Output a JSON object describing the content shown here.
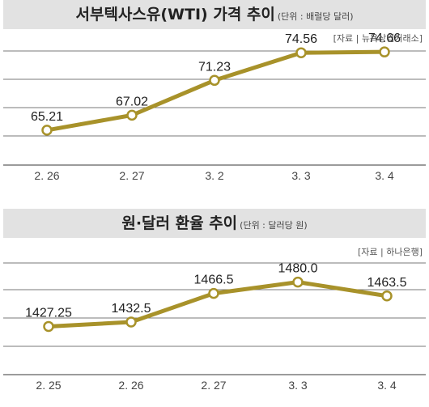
{
  "line_color": "#a8922a",
  "grid_color": "#7a7a7a",
  "title_bg": "#e2e2e2",
  "panels": [
    {
      "title": "서부텍사스유(WTI) 가격 추이",
      "unit": "(단위 : 배럴당 달러)",
      "source": "[자료 | 뉴욕상업거래소]"
    },
    {
      "title": "원·달러 환율 추이",
      "unit": "(단위 : 달러당 원)",
      "source": "[자료 | 하나은행]"
    }
  ],
  "chart_data": [
    {
      "type": "line",
      "title": "서부텍사스유(WTI) 가격 추이",
      "subtitle": "(단위 : 배럴당 달러)",
      "categories": [
        "2. 26",
        "2. 27",
        "3. 2",
        "3. 3",
        "3. 4"
      ],
      "values": [
        65.21,
        67.02,
        71.23,
        74.56,
        74.66
      ],
      "value_labels": [
        "65.21",
        "67.02",
        "71.23",
        "74.56",
        "74.66"
      ],
      "ylim": [
        61,
        78
      ],
      "grid": true,
      "source": "[자료 | 뉴욕상업거래소]"
    },
    {
      "type": "line",
      "title": "원·달러 환율 추이",
      "subtitle": "(단위 : 달러당 원)",
      "categories": [
        "2. 25",
        "2. 26",
        "2. 27",
        "3. 3",
        "3. 4"
      ],
      "values": [
        1427.25,
        1432.5,
        1466.5,
        1480.0,
        1463.5
      ],
      "value_labels": [
        "1427.25",
        "1432.5",
        "1466.5",
        "1480.0",
        "1463.5"
      ],
      "ylim": [
        1370,
        1520
      ],
      "grid": true,
      "source": "[자료 | 하나은행]"
    }
  ]
}
